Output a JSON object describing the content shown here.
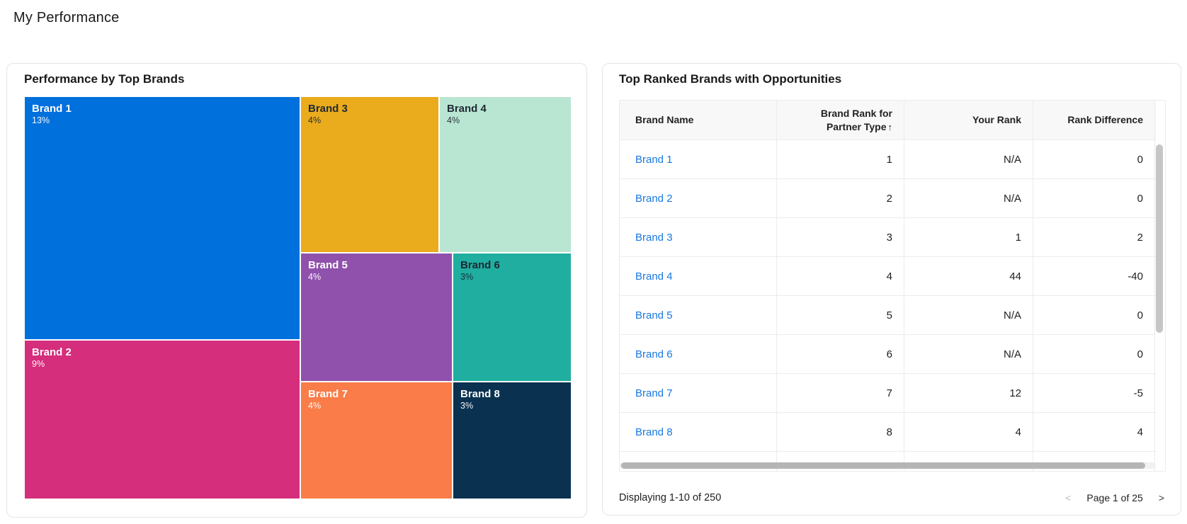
{
  "page": {
    "title": "My Performance"
  },
  "treemap_card": {
    "title": "Performance by Top Brands"
  },
  "chart_data": {
    "type": "treemap",
    "title": "Performance by Top Brands",
    "items": [
      {
        "label": "Brand 1",
        "value_pct": 13,
        "value_label": "13%",
        "color": "#0070DC",
        "text_color": "#FFFFFF"
      },
      {
        "label": "Brand 2",
        "value_pct": 9,
        "value_label": "9%",
        "color": "#D42E7C",
        "text_color": "#FFFFFF"
      },
      {
        "label": "Brand 3",
        "value_pct": 4,
        "value_label": "4%",
        "color": "#EAAB1C",
        "text_color": "#1F2933"
      },
      {
        "label": "Brand 4",
        "value_pct": 4,
        "value_label": "4%",
        "color": "#B9E6D3",
        "text_color": "#1F2933"
      },
      {
        "label": "Brand 5",
        "value_pct": 4,
        "value_label": "4%",
        "color": "#9051AD",
        "text_color": "#FFFFFF"
      },
      {
        "label": "Brand 6",
        "value_pct": 3,
        "value_label": "3%",
        "color": "#1FAEA0",
        "text_color": "#1A2733"
      },
      {
        "label": "Brand 7",
        "value_pct": 4,
        "value_label": "4%",
        "color": "#F97C49",
        "text_color": "#FFFFFF"
      },
      {
        "label": "Brand 8",
        "value_pct": 3,
        "value_label": "3%",
        "color": "#0A3150",
        "text_color": "#FFFFFF"
      }
    ]
  },
  "table_card": {
    "title": "Top Ranked Brands with Opportunities",
    "sort_icon": "↑",
    "columns": [
      {
        "label": "Brand Name",
        "align": "left",
        "sorted": false
      },
      {
        "label": "Brand Rank for Partner Type",
        "align": "right",
        "sorted": true
      },
      {
        "label": "Your Rank",
        "align": "right",
        "sorted": false
      },
      {
        "label": "Rank Difference",
        "align": "right",
        "sorted": false
      }
    ],
    "rows": [
      {
        "brand": "Brand 1",
        "brand_rank": "1",
        "your_rank": "N/A",
        "rank_difference": "0"
      },
      {
        "brand": "Brand 2",
        "brand_rank": "2",
        "your_rank": "N/A",
        "rank_difference": "0"
      },
      {
        "brand": "Brand 3",
        "brand_rank": "3",
        "your_rank": "1",
        "rank_difference": "2"
      },
      {
        "brand": "Brand 4",
        "brand_rank": "4",
        "your_rank": "44",
        "rank_difference": "-40"
      },
      {
        "brand": "Brand 5",
        "brand_rank": "5",
        "your_rank": "N/A",
        "rank_difference": "0"
      },
      {
        "brand": "Brand 6",
        "brand_rank": "6",
        "your_rank": "N/A",
        "rank_difference": "0"
      },
      {
        "brand": "Brand 7",
        "brand_rank": "7",
        "your_rank": "12",
        "rank_difference": "-5"
      },
      {
        "brand": "Brand 8",
        "brand_rank": "8",
        "your_rank": "4",
        "rank_difference": "4"
      }
    ],
    "footer": {
      "displaying": "Displaying 1-10 of 250",
      "prev_icon": "<",
      "page_label": "Page 1 of 25",
      "next_icon": ">"
    }
  }
}
